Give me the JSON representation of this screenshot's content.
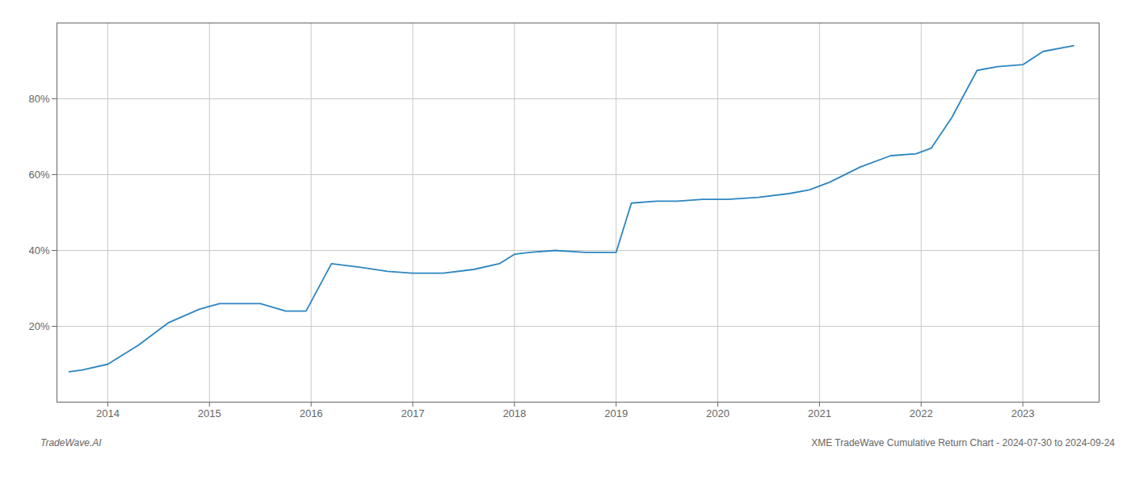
{
  "chart_data": {
    "type": "line",
    "title": "XME TradeWave Cumulative Return Chart - 2024-07-30 to 2024-09-24",
    "annotations": [
      "TradeWave.AI"
    ],
    "x": [
      2013.62,
      2013.75,
      2014.0,
      2014.3,
      2014.6,
      2014.9,
      2015.1,
      2015.5,
      2015.75,
      2015.95,
      2016.2,
      2016.5,
      2016.75,
      2017.0,
      2017.3,
      2017.6,
      2017.85,
      2018.0,
      2018.15,
      2018.4,
      2018.7,
      2019.0,
      2019.15,
      2019.4,
      2019.6,
      2019.85,
      2020.1,
      2020.4,
      2020.7,
      2020.9,
      2021.1,
      2021.4,
      2021.7,
      2021.95,
      2022.1,
      2022.3,
      2022.55,
      2022.75,
      2023.0,
      2023.2,
      2023.5
    ],
    "values": [
      8.0,
      8.5,
      10.0,
      15.0,
      21.0,
      24.5,
      26.0,
      26.0,
      24.0,
      24.0,
      36.5,
      35.5,
      34.5,
      34.0,
      34.0,
      35.0,
      36.5,
      39.0,
      39.5,
      40.0,
      39.5,
      39.5,
      52.5,
      53.0,
      53.0,
      53.5,
      53.5,
      54.0,
      55.0,
      56.0,
      58.0,
      62.0,
      65.0,
      65.5,
      67.0,
      75.0,
      87.5,
      88.5,
      89.0,
      92.5,
      94.0
    ],
    "color": "#2e86c1",
    "xlim": [
      2013.5,
      2023.75
    ],
    "xticks": [
      2014,
      2015,
      2016,
      2017,
      2018,
      2019,
      2020,
      2021,
      2022,
      2023
    ],
    "ylim": [
      0,
      100
    ],
    "yticks": [
      {
        "value": 20,
        "label": "20%"
      },
      {
        "value": 40,
        "label": "40%"
      },
      {
        "value": 60,
        "label": "60%"
      },
      {
        "value": 80,
        "label": "80%"
      }
    ],
    "grid": true
  }
}
